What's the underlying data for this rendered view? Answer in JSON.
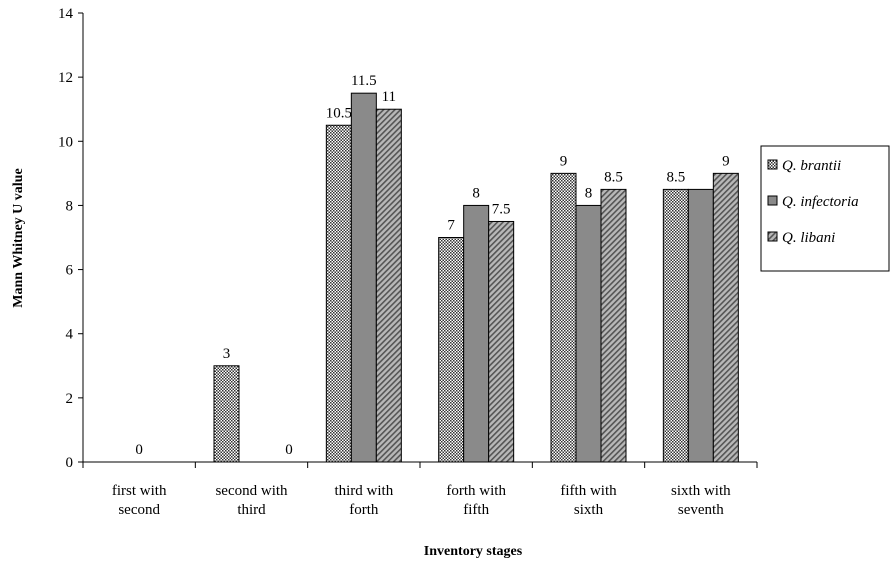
{
  "chart_data": {
    "type": "bar",
    "title": "",
    "xlabel": "Inventory stages",
    "ylabel": "Mann Whitney U value",
    "ylim": [
      0,
      14
    ],
    "ytick_step": 2,
    "grid": false,
    "legend_position": "right",
    "categories": [
      [
        "first with",
        "second"
      ],
      [
        "second with",
        "third"
      ],
      [
        "third with",
        "forth"
      ],
      [
        "forth with",
        "fifth"
      ],
      [
        "fifth with",
        "sixth"
      ],
      [
        "sixth with",
        "seventh"
      ]
    ],
    "series": [
      {
        "name": "Q. brantii",
        "pattern": "dots",
        "values": [
          0,
          3,
          10.5,
          7,
          9,
          8.5
        ]
      },
      {
        "name": "Q. infectoria",
        "pattern": "solid-gray",
        "values": [
          0,
          0,
          11.5,
          8,
          8,
          8.5
        ]
      },
      {
        "name": "Q. libani",
        "pattern": "diagonal",
        "values": [
          0,
          0,
          11,
          7.5,
          8.5,
          9
        ]
      }
    ],
    "data_labels": [
      {
        "category": 0,
        "text": "0"
      },
      {
        "category": 1,
        "text": "3"
      },
      {
        "category": 1,
        "text": "0"
      },
      {
        "category": 2,
        "text": "10.5"
      },
      {
        "category": 2,
        "text": "11.5"
      },
      {
        "category": 2,
        "text": "11"
      },
      {
        "category": 3,
        "text": "7"
      },
      {
        "category": 3,
        "text": "8"
      },
      {
        "category": 3,
        "text": "7.5"
      },
      {
        "category": 4,
        "text": "9"
      },
      {
        "category": 4,
        "text": "8"
      },
      {
        "category": 4,
        "text": "8.5"
      },
      {
        "category": 5,
        "text": "8.5"
      },
      {
        "category": 5,
        "text": "9"
      }
    ]
  }
}
